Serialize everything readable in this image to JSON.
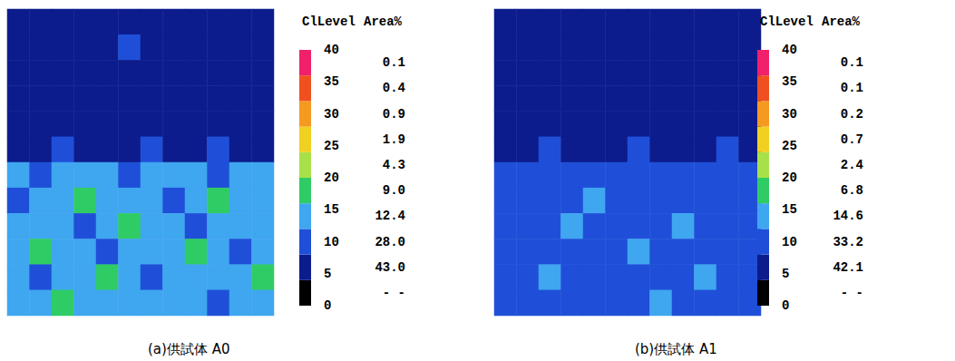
{
  "chart_data": [
    {
      "type": "heatmap",
      "caption": "(a)供試体 A0",
      "cells": [
        [
          6,
          5,
          7,
          6,
          5,
          6,
          7,
          5,
          6,
          6,
          5,
          7
        ],
        [
          5,
          7,
          6,
          5,
          6,
          8,
          5,
          6,
          7,
          5,
          6,
          6
        ],
        [
          7,
          6,
          5,
          6,
          7,
          5,
          6,
          6,
          5,
          7,
          6,
          5
        ],
        [
          6,
          5,
          6,
          7,
          5,
          6,
          5,
          7,
          6,
          6,
          7,
          6
        ],
        [
          5,
          6,
          7,
          6,
          6,
          5,
          7,
          6,
          5,
          6,
          5,
          7
        ],
        [
          7,
          6,
          9,
          7,
          6,
          7,
          8,
          6,
          7,
          9,
          6,
          7
        ],
        [
          13,
          11,
          14,
          12,
          15,
          11,
          13,
          12,
          14,
          11,
          13,
          12
        ],
        [
          11,
          14,
          12,
          17,
          13,
          12,
          15,
          11,
          13,
          16,
          12,
          14
        ],
        [
          14,
          12,
          15,
          11,
          13,
          17,
          12,
          14,
          11,
          13,
          15,
          12
        ],
        [
          12,
          16,
          13,
          14,
          11,
          13,
          14,
          12,
          17,
          12,
          11,
          14
        ],
        [
          15,
          11,
          12,
          13,
          16,
          12,
          11,
          15,
          13,
          14,
          12,
          16
        ],
        [
          13,
          14,
          17,
          12,
          13,
          15,
          12,
          13,
          14,
          11,
          15,
          13
        ]
      ],
      "color_bar": {
        "title": "ClLevel",
        "range": [
          0,
          40
        ],
        "ticks": [
          0,
          5,
          10,
          15,
          20,
          25,
          30,
          35,
          40
        ],
        "bins": [
          0,
          4,
          8,
          12,
          16,
          20,
          24,
          28,
          32,
          36,
          40
        ],
        "colors": [
          "#000000",
          "#0c1c8c",
          "#1f4fd8",
          "#3fa6f0",
          "#2fcc66",
          "#a8e04a",
          "#f0d020",
          "#f59a20",
          "#f05020",
          "#f0206a"
        ],
        "area_title": "Area%",
        "area_pct": [
          null,
          43.0,
          28.0,
          12.4,
          9.0,
          4.3,
          1.9,
          0.9,
          0.4,
          0.1
        ],
        "area_pct_labels": [
          "- -",
          "43.0",
          "28.0",
          "12.4",
          "9.0",
          "4.3",
          "1.9",
          "0.9",
          "0.4",
          "0.1"
        ]
      }
    },
    {
      "type": "heatmap",
      "caption": "(b)供試体 A1",
      "cells": [
        [
          5,
          6,
          5,
          7,
          6,
          5,
          6,
          5,
          6,
          7,
          5,
          6
        ],
        [
          6,
          5,
          6,
          5,
          7,
          6,
          5,
          6,
          5,
          6,
          6,
          5
        ],
        [
          5,
          7,
          6,
          6,
          5,
          6,
          7,
          5,
          6,
          5,
          7,
          6
        ],
        [
          6,
          5,
          5,
          6,
          6,
          7,
          5,
          6,
          7,
          6,
          5,
          6
        ],
        [
          7,
          6,
          6,
          5,
          6,
          5,
          6,
          7,
          5,
          6,
          6,
          7
        ],
        [
          6,
          7,
          8,
          6,
          7,
          6,
          8,
          7,
          6,
          7,
          8,
          6
        ],
        [
          9,
          10,
          8,
          11,
          9,
          10,
          9,
          11,
          10,
          9,
          10,
          9
        ],
        [
          10,
          9,
          11,
          10,
          12,
          9,
          10,
          9,
          11,
          10,
          9,
          11
        ],
        [
          11,
          10,
          9,
          12,
          10,
          11,
          9,
          10,
          12,
          11,
          10,
          9
        ],
        [
          9,
          11,
          10,
          9,
          11,
          10,
          13,
          9,
          10,
          9,
          11,
          10
        ],
        [
          10,
          9,
          12,
          11,
          9,
          10,
          11,
          10,
          9,
          12,
          10,
          11
        ],
        [
          11,
          10,
          9,
          10,
          11,
          9,
          10,
          12,
          11,
          10,
          9,
          10
        ]
      ],
      "color_bar": {
        "title": "ClLevel",
        "range": [
          0,
          40
        ],
        "ticks": [
          0,
          5,
          10,
          15,
          20,
          25,
          30,
          35,
          40
        ],
        "bins": [
          0,
          4,
          8,
          12,
          16,
          20,
          24,
          28,
          32,
          36,
          40
        ],
        "colors": [
          "#000000",
          "#0c1c8c",
          "#1f4fd8",
          "#3fa6f0",
          "#2fcc66",
          "#a8e04a",
          "#f0d020",
          "#f59a20",
          "#f05020",
          "#f0206a"
        ],
        "area_title": "Area%",
        "area_pct": [
          null,
          42.1,
          33.2,
          14.6,
          6.8,
          2.4,
          0.7,
          0.2,
          0.1,
          0.1
        ],
        "area_pct_labels": [
          "- -",
          "42.1",
          "33.2",
          "14.6",
          "6.8",
          "2.4",
          "0.7",
          "0.2",
          "0.1",
          "0.1"
        ]
      }
    }
  ]
}
